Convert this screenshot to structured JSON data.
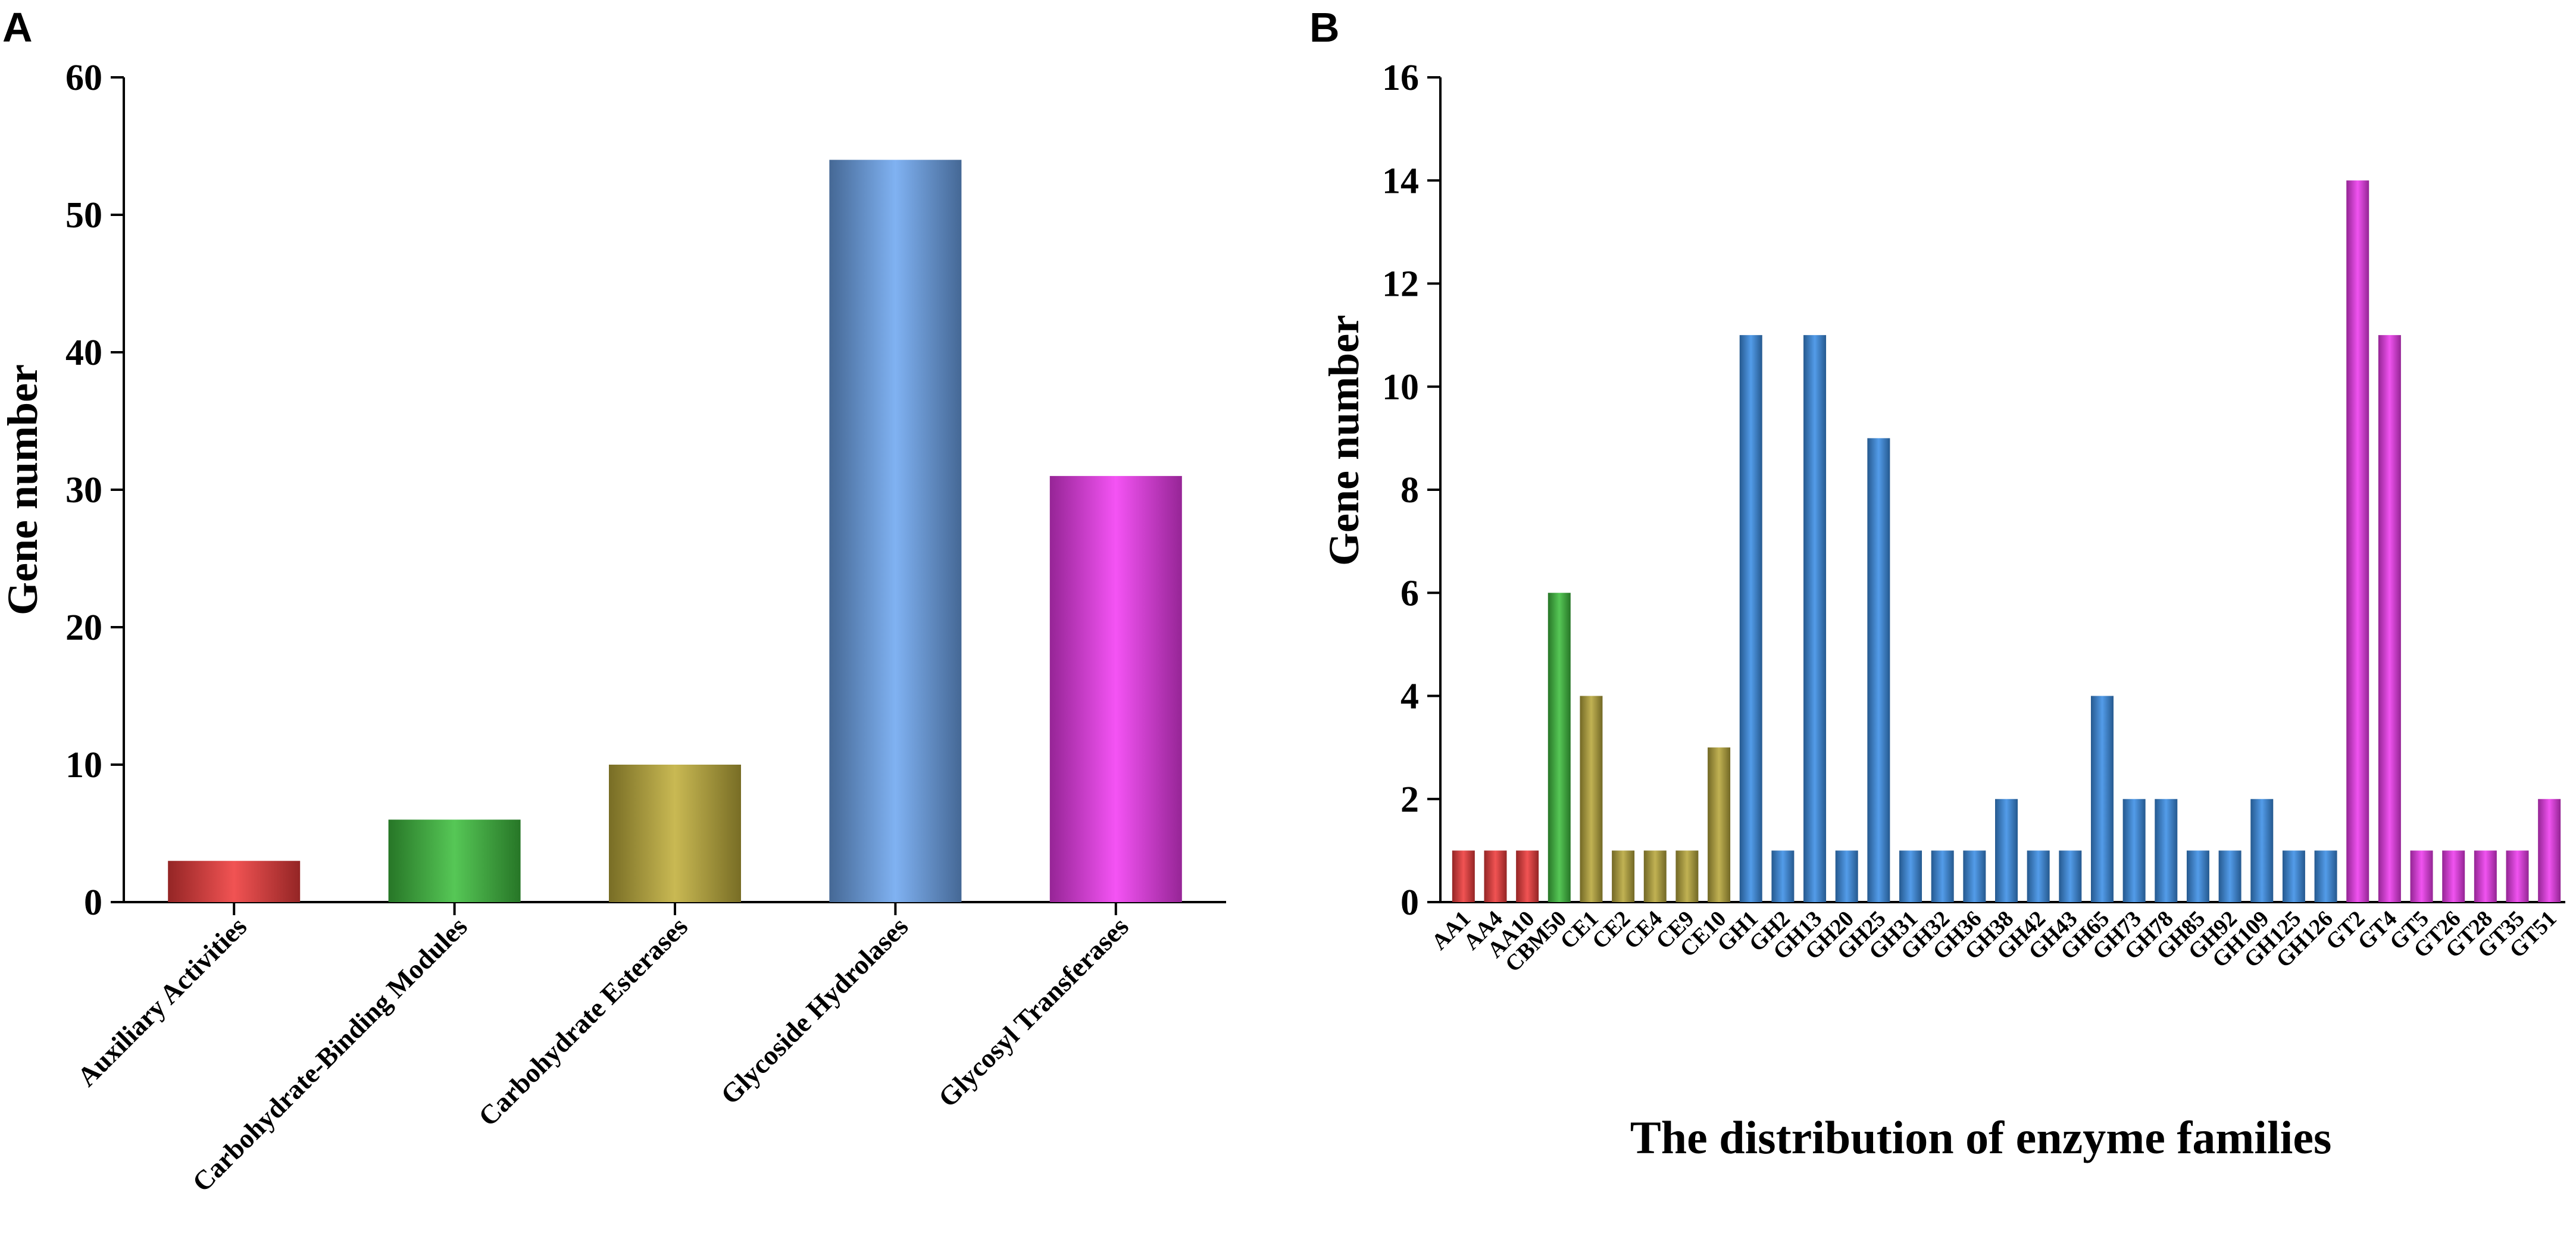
{
  "chart_data": [
    {
      "panel": "A",
      "type": "bar",
      "title": "",
      "xlabel": "",
      "ylabel": "Gene number",
      "ylim": [
        0,
        60
      ],
      "yticks": [
        0,
        10,
        20,
        30,
        40,
        50,
        60
      ],
      "categories": [
        "Auxiliary Activities",
        "Carbohydrate-Binding Modules",
        "Carbohydrate Esterases",
        "Glycoside Hydrolases",
        "Glycosyl Transferases"
      ],
      "values": [
        3,
        6,
        10,
        54,
        31
      ],
      "colors": [
        "#ef3b3b",
        "#3fbf3f",
        "#c2b03c",
        "#6fa8f0",
        "#f23cf2"
      ]
    },
    {
      "panel": "B",
      "type": "bar",
      "title": "",
      "xlabel": "The distribution of enzyme families",
      "ylabel": "Gene number",
      "ylim": [
        0,
        16
      ],
      "yticks": [
        0,
        2,
        4,
        6,
        8,
        10,
        12,
        14,
        16
      ],
      "categories": [
        "AA1",
        "AA4",
        "AA10",
        "CBM50",
        "CE1",
        "CE2",
        "CE4",
        "CE9",
        "CE10",
        "GH1",
        "GH2",
        "GH13",
        "GH20",
        "GH25",
        "GH31",
        "GH32",
        "GH36",
        "GH38",
        "GH42",
        "GH43",
        "GH65",
        "GH73",
        "GH78",
        "GH85",
        "GH92",
        "GH109",
        "GH125",
        "GH126",
        "GT2",
        "GT4",
        "GT5",
        "GT26",
        "GT28",
        "GT35",
        "GT51"
      ],
      "values": [
        1,
        1,
        1,
        6,
        4,
        1,
        1,
        1,
        3,
        11,
        1,
        11,
        1,
        9,
        1,
        1,
        1,
        2,
        1,
        1,
        4,
        2,
        2,
        1,
        1,
        2,
        1,
        1,
        14,
        11,
        1,
        1,
        1,
        1,
        2
      ],
      "groups": [
        "AA",
        "AA",
        "AA",
        "CBM",
        "CE",
        "CE",
        "CE",
        "CE",
        "CE",
        "GH",
        "GH",
        "GH",
        "GH",
        "GH",
        "GH",
        "GH",
        "GH",
        "GH",
        "GH",
        "GH",
        "GH",
        "GH",
        "GH",
        "GH",
        "GH",
        "GH",
        "GH",
        "GH",
        "GT",
        "GT",
        "GT",
        "GT",
        "GT",
        "GT",
        "GT"
      ],
      "group_colors": {
        "AA": "#ef3b3b",
        "CBM": "#3fbf3f",
        "CE": "#b8a83c",
        "GH": "#3b8fe6",
        "GT": "#ee3cee"
      }
    }
  ]
}
